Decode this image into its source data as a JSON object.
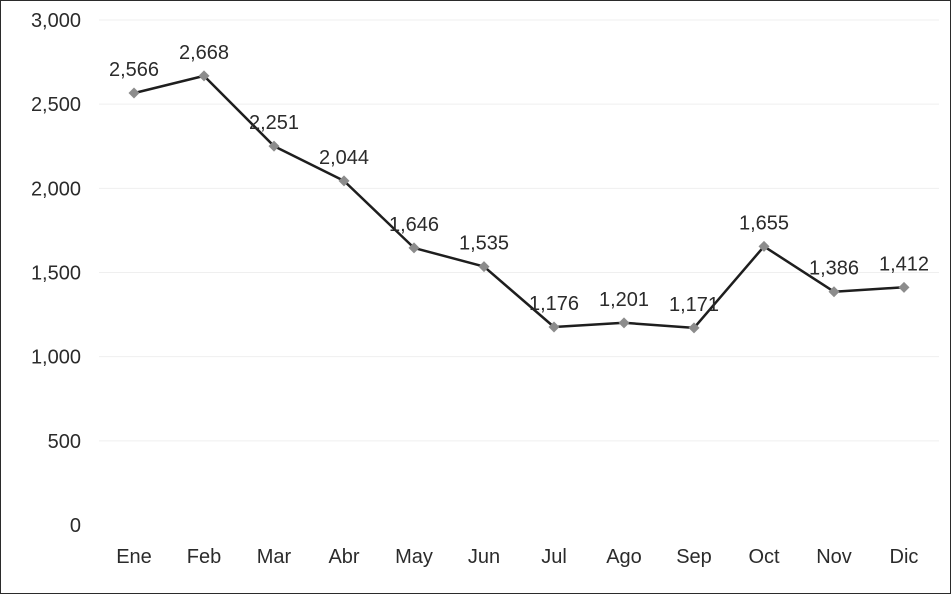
{
  "chart_data": {
    "type": "line",
    "categories": [
      "Ene",
      "Feb",
      "Mar",
      "Abr",
      "May",
      "Jun",
      "Jul",
      "Ago",
      "Sep",
      "Oct",
      "Nov",
      "Dic"
    ],
    "series": [
      {
        "values": [
          2566,
          2668,
          2251,
          2044,
          1646,
          1535,
          1176,
          1201,
          1171,
          1655,
          1386,
          1412
        ]
      }
    ],
    "data_labels": [
      "2,566",
      "2,668",
      "2,251",
      "2,044",
      "1,646",
      "1,535",
      "1,176",
      "1,201",
      "1,171",
      "1,655",
      "1,386",
      "1,412"
    ],
    "y_ticks": [
      0,
      500,
      1000,
      1500,
      2000,
      2500,
      3000
    ],
    "y_tick_labels": [
      "0",
      "500",
      "1,000",
      "1,500",
      "2,000",
      "2,500",
      "3,000"
    ],
    "ylim": [
      0,
      3000
    ],
    "grid": true,
    "legend": false,
    "colors": {
      "line": "#1e1e1e",
      "marker": "#8c8c8c",
      "grid": "#efefef",
      "text": "#2b2b2b"
    }
  }
}
